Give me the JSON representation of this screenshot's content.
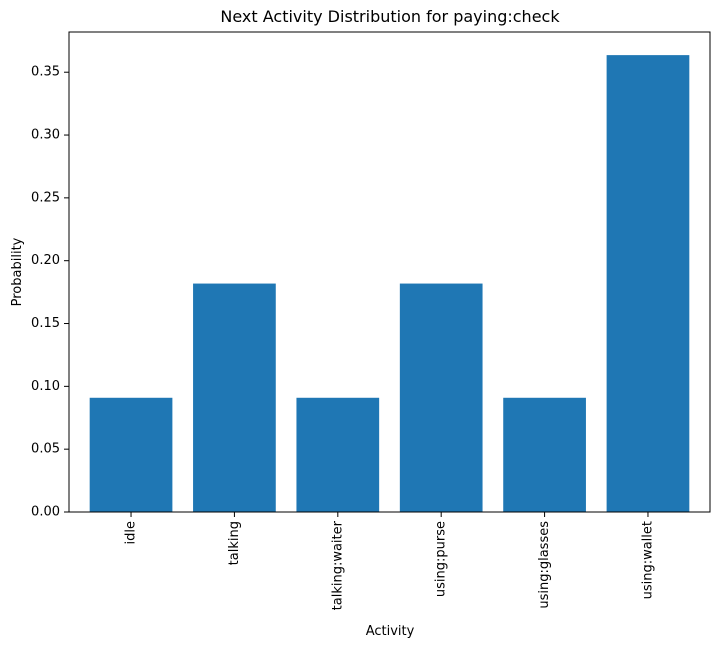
{
  "chart_data": {
    "type": "bar",
    "title": "Next Activity Distribution for paying:check",
    "xlabel": "Activity",
    "ylabel": "Probability",
    "categories": [
      "idle",
      "talking",
      "talking:waiter",
      "using:purse",
      "using:glasses",
      "using:wallet"
    ],
    "values": [
      0.0909,
      0.1818,
      0.0909,
      0.1818,
      0.0909,
      0.3636
    ],
    "ylim": [
      0,
      0.382
    ],
    "yticks": [
      0.0,
      0.05,
      0.1,
      0.15,
      0.2,
      0.25,
      0.3,
      0.35
    ],
    "ytick_labels": [
      "0.00",
      "0.05",
      "0.10",
      "0.15",
      "0.20",
      "0.25",
      "0.30",
      "0.35"
    ],
    "bar_color": "#1f77b4",
    "grid": false,
    "legend": "none"
  }
}
